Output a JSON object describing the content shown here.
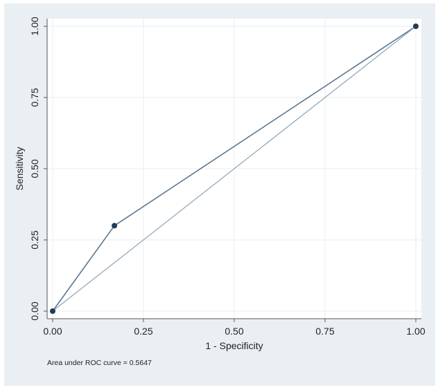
{
  "chart_data": {
    "type": "line",
    "xlabel": "1 - Specificity",
    "ylabel": "Sensitivity",
    "xlim": [
      0,
      1
    ],
    "ylim": [
      0,
      1
    ],
    "xticks": [
      "0.00",
      "0.25",
      "0.50",
      "0.75",
      "1.00"
    ],
    "yticks": [
      "0.00",
      "0.25",
      "0.50",
      "0.75",
      "1.00"
    ],
    "grid": true,
    "series": [
      {
        "x": [
          0,
          0.17,
          1
        ],
        "y": [
          0,
          0.3,
          1
        ],
        "markers": true
      },
      {
        "x": [
          0,
          1
        ],
        "y": [
          0,
          1
        ],
        "markers": false
      }
    ],
    "annotation": "Area under ROC curve = 0.5647",
    "colors": {
      "background": "#e9eff3",
      "plot_area": "#ffffff",
      "roc_line": "#5b7590",
      "marker": "#1f3c5a",
      "reference_line": "#8aa3b5",
      "grid": "#e8eef2",
      "axis": "#555555"
    }
  }
}
